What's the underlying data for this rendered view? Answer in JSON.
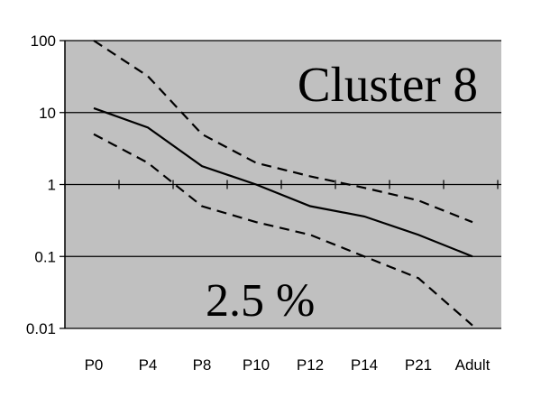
{
  "chart_data": {
    "type": "line",
    "y_scale": "log",
    "ylim": [
      0.01,
      100
    ],
    "y_ticks": [
      "100",
      "10",
      "1",
      "0.1",
      "0.01"
    ],
    "categories": [
      "P0",
      "P4",
      "P8",
      "P10",
      "P12",
      "P14",
      "P21",
      "Adult"
    ],
    "series": [
      {
        "style": "solid",
        "values": [
          11.5,
          6.2,
          1.8,
          1.0,
          0.5,
          0.36,
          0.2,
          0.1
        ]
      },
      {
        "style": "dashed",
        "values": [
          100,
          32,
          5,
          2,
          1.3,
          0.9,
          0.6,
          0.3
        ]
      },
      {
        "style": "dashed",
        "values": [
          5,
          2,
          0.5,
          0.3,
          0.2,
          0.1,
          0.05,
          0.011
        ]
      }
    ],
    "annotations": [
      "Cluster 8",
      "2.5 %"
    ],
    "grid": "horizontal",
    "plot_background": "#c0c0c0",
    "line_color": "#000000"
  }
}
